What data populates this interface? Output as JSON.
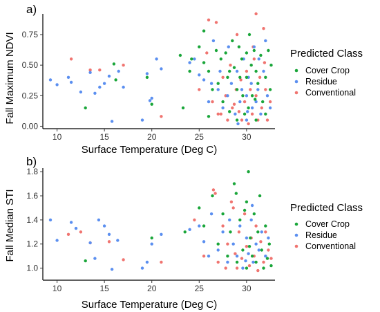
{
  "chart_data": [
    {
      "type": "scatter",
      "panel_label": "a)",
      "ylabel": "Fall Maximum NDVI",
      "xlabel": "Surface Temperature (Deg C)",
      "xlim": [
        8.5,
        33
      ],
      "ylim": [
        -0.02,
        0.92
      ],
      "x_ticks": [
        10,
        15,
        20,
        25,
        30
      ],
      "y_ticks": [
        0.0,
        0.25,
        0.5,
        0.75
      ],
      "y_tick_labels": [
        "0.00",
        "0.25",
        "0.50",
        "0.75"
      ],
      "grid": false,
      "legend_position": "right",
      "legend_title": "Predicted Class",
      "series": [
        {
          "name": "Cover Crop",
          "color": "#1aa63a",
          "points": [
            [
              13,
              0.15
            ],
            [
              16,
              0.51
            ],
            [
              16.2,
              0.38
            ],
            [
              19.5,
              0.4
            ],
            [
              20,
              0.18
            ],
            [
              23,
              0.58
            ],
            [
              23.3,
              0.15
            ],
            [
              24,
              0.45
            ],
            [
              24.2,
              0.55
            ],
            [
              25,
              0.65
            ],
            [
              25.5,
              0.52
            ],
            [
              25.5,
              0.78
            ],
            [
              26,
              0.45
            ],
            [
              26,
              0.08
            ],
            [
              26.4,
              0.3
            ],
            [
              26.8,
              0.62
            ],
            [
              27,
              0.35
            ],
            [
              27.3,
              0.55
            ],
            [
              27.5,
              0.2
            ],
            [
              27.8,
              0.6
            ],
            [
              28,
              0.4
            ],
            [
              28.2,
              0.45
            ],
            [
              28.5,
              0.7
            ],
            [
              28.7,
              0.48
            ],
            [
              29,
              0.05
            ],
            [
              29,
              0.3
            ],
            [
              29.2,
              0.65
            ],
            [
              29.5,
              0.55
            ],
            [
              29.6,
              0.25
            ],
            [
              29.8,
              0.1
            ],
            [
              30,
              0.6
            ],
            [
              30,
              0.4
            ],
            [
              30.2,
              0.15
            ],
            [
              30.3,
              0.75
            ],
            [
              30.5,
              0.5
            ],
            [
              30.6,
              0.25
            ],
            [
              30.8,
              0.62
            ],
            [
              31,
              0.45
            ],
            [
              31,
              0.05
            ],
            [
              31.2,
              0.35
            ],
            [
              31.5,
              0.58
            ],
            [
              31.7,
              0.2
            ],
            [
              32,
              0.4
            ],
            [
              32,
              0.1
            ],
            [
              32.3,
              0.62
            ],
            [
              32.5,
              0.3
            ],
            [
              32.6,
              0.5
            ],
            [
              28.2,
              0.12
            ],
            [
              29.3,
              0.4
            ],
            [
              30.9,
              0.22
            ]
          ]
        },
        {
          "name": "Residue",
          "color": "#5b8ff0",
          "points": [
            [
              9.3,
              0.38
            ],
            [
              10,
              0.34
            ],
            [
              11.2,
              0.4
            ],
            [
              11.5,
              0.36
            ],
            [
              12.5,
              0.28
            ],
            [
              13.5,
              0.44
            ],
            [
              14,
              0.27
            ],
            [
              14.5,
              0.32
            ],
            [
              15,
              0.35
            ],
            [
              15.5,
              0.41
            ],
            [
              15.8,
              0.04
            ],
            [
              16.5,
              0.45
            ],
            [
              17,
              0.32
            ],
            [
              19,
              0.05
            ],
            [
              19.5,
              0.43
            ],
            [
              19.8,
              0.21
            ],
            [
              20,
              0.23
            ],
            [
              20.5,
              0.55
            ],
            [
              21,
              0.47
            ],
            [
              24,
              0.52
            ],
            [
              24.5,
              0.55
            ],
            [
              25,
              0.42
            ],
            [
              25.5,
              0.38
            ],
            [
              26,
              0.2
            ],
            [
              26.3,
              0.35
            ],
            [
              26.5,
              0.7
            ],
            [
              27,
              0.3
            ],
            [
              27.2,
              0.45
            ],
            [
              27.5,
              0.15
            ],
            [
              28,
              0.25
            ],
            [
              28.1,
              0.65
            ],
            [
              28.4,
              0.35
            ],
            [
              28.8,
              0.1
            ],
            [
              29,
              0.45
            ],
            [
              29.3,
              0.2
            ],
            [
              29.5,
              0.3
            ],
            [
              29.7,
              0.55
            ],
            [
              30,
              0.25
            ],
            [
              30,
              0.05
            ],
            [
              30.2,
              0.4
            ],
            [
              30.5,
              0.35
            ],
            [
              30.6,
              0.15
            ],
            [
              30.8,
              0.65
            ],
            [
              31,
              0.2
            ],
            [
              31.2,
              0.3
            ],
            [
              31.5,
              0.1
            ],
            [
              31.8,
              0.45
            ],
            [
              32,
              0.7
            ],
            [
              32.2,
              0.25
            ],
            [
              32.5,
              0.15
            ],
            [
              30.1,
              0.12
            ],
            [
              29.1,
              0.02
            ],
            [
              31.3,
              0.55
            ]
          ]
        },
        {
          "name": "Conventional",
          "color": "#f07470",
          "points": [
            [
              11.5,
              0.55
            ],
            [
              13.5,
              0.46
            ],
            [
              14.5,
              0.46
            ],
            [
              17,
              0.5
            ],
            [
              21,
              0.08
            ],
            [
              25,
              0.3
            ],
            [
              25.8,
              0.6
            ],
            [
              26,
              0.87
            ],
            [
              26.4,
              0.2
            ],
            [
              26.8,
              0.85
            ],
            [
              27,
              0.1
            ],
            [
              27.5,
              0.4
            ],
            [
              27.8,
              0.25
            ],
            [
              28,
              0.05
            ],
            [
              28.3,
              0.5
            ],
            [
              28.5,
              0.15
            ],
            [
              28.9,
              0.3
            ],
            [
              29,
              0.75
            ],
            [
              29.2,
              0.12
            ],
            [
              29.5,
              0.05
            ],
            [
              29.8,
              0.2
            ],
            [
              30,
              0.45
            ],
            [
              30.2,
              0.02
            ],
            [
              30.4,
              0.3
            ],
            [
              30.6,
              0.1
            ],
            [
              30.8,
              0.55
            ],
            [
              31,
              0.25
            ],
            [
              31,
              0.92
            ],
            [
              31.2,
              0.05
            ],
            [
              31.4,
              0.4
            ],
            [
              31.6,
              0.15
            ],
            [
              31.8,
              0.8
            ],
            [
              32,
              0.3
            ],
            [
              32.2,
              0.05
            ],
            [
              32.5,
              0.2
            ],
            [
              28.7,
              0.18
            ],
            [
              29.4,
              0.38
            ],
            [
              30.7,
              0.65
            ],
            [
              27.3,
              0.1
            ],
            [
              31.9,
              0.52
            ]
          ]
        }
      ]
    },
    {
      "type": "scatter",
      "panel_label": "b)",
      "ylabel": "Fall Median STI",
      "xlabel": "Surface Temperature (Deg C)",
      "xlim": [
        8.5,
        33
      ],
      "ylim": [
        0.9,
        1.83
      ],
      "x_ticks": [
        10,
        15,
        20,
        25,
        30
      ],
      "y_ticks": [
        1.0,
        1.2,
        1.4,
        1.6,
        1.8
      ],
      "y_tick_labels": [
        "1.0",
        "1.2",
        "1.4",
        "1.6",
        "1.8"
      ],
      "grid": false,
      "legend_position": "right",
      "legend_title": "Predicted Class",
      "series": [
        {
          "name": "Cover Crop",
          "color": "#1aa63a",
          "points": [
            [
              13,
              1.06
            ],
            [
              20,
              1.25
            ],
            [
              23.5,
              1.3
            ],
            [
              25,
              1.5
            ],
            [
              25.5,
              1.35
            ],
            [
              26.4,
              1.6
            ],
            [
              27,
              1.2
            ],
            [
              27.5,
              1.45
            ],
            [
              28,
              1.1
            ],
            [
              28.3,
              1.3
            ],
            [
              28.7,
              1.7
            ],
            [
              29,
              1.05
            ],
            [
              29.3,
              1.4
            ],
            [
              29.6,
              1.15
            ],
            [
              30,
              1.55
            ],
            [
              30,
              1.0
            ],
            [
              30.2,
              1.8
            ],
            [
              30.4,
              1.25
            ],
            [
              30.6,
              1.1
            ],
            [
              30.8,
              1.45
            ],
            [
              31,
              1.05
            ],
            [
              31.2,
              1.3
            ],
            [
              31.4,
              1.6
            ],
            [
              31.6,
              1.15
            ],
            [
              31.8,
              1.0
            ],
            [
              32,
              1.35
            ],
            [
              32.2,
              1.08
            ],
            [
              32.4,
              1.2
            ],
            [
              32.6,
              1.02
            ],
            [
              29.8,
              1.48
            ],
            [
              28.9,
              1.62
            ],
            [
              30.3,
              1.18
            ]
          ]
        },
        {
          "name": "Residue",
          "color": "#5b8ff0",
          "points": [
            [
              9.3,
              1.4
            ],
            [
              10,
              1.23
            ],
            [
              11.5,
              1.38
            ],
            [
              12,
              1.33
            ],
            [
              13.5,
              1.21
            ],
            [
              14,
              1.08
            ],
            [
              14.4,
              1.4
            ],
            [
              15,
              1.35
            ],
            [
              15.5,
              1.28
            ],
            [
              15.8,
              0.99
            ],
            [
              16.4,
              1.23
            ],
            [
              19,
              1.0
            ],
            [
              19.5,
              1.05
            ],
            [
              20,
              1.2
            ],
            [
              21,
              1.28
            ],
            [
              24,
              1.32
            ],
            [
              25,
              1.35
            ],
            [
              25.5,
              1.22
            ],
            [
              26,
              1.1
            ],
            [
              26.3,
              1.45
            ],
            [
              27,
              1.15
            ],
            [
              27.5,
              1.3
            ],
            [
              28,
              1.05
            ],
            [
              28.2,
              1.4
            ],
            [
              28.6,
              1.2
            ],
            [
              29,
              1.1
            ],
            [
              29.3,
              1.35
            ],
            [
              29.6,
              1.0
            ],
            [
              30,
              1.25
            ],
            [
              30.2,
              1.12
            ],
            [
              30.5,
              1.4
            ],
            [
              30.7,
              1.05
            ],
            [
              31,
              1.2
            ],
            [
              31.3,
              1.15
            ],
            [
              31.6,
              1.3
            ],
            [
              32,
              1.1
            ],
            [
              32.3,
              1.25
            ],
            [
              29.9,
              1.06
            ],
            [
              30.6,
              1.52
            ]
          ]
        },
        {
          "name": "Conventional",
          "color": "#f07470",
          "points": [
            [
              11.2,
              1.28
            ],
            [
              12.5,
              1.3
            ],
            [
              13.5,
              1.21
            ],
            [
              15.5,
              1.22
            ],
            [
              17,
              1.07
            ],
            [
              21,
              1.05
            ],
            [
              24.5,
              1.4
            ],
            [
              25.5,
              1.1
            ],
            [
              26.5,
              1.65
            ],
            [
              27,
              1.05
            ],
            [
              27.5,
              1.35
            ],
            [
              27.8,
              1.0
            ],
            [
              28,
              1.2
            ],
            [
              28.4,
              1.55
            ],
            [
              28.8,
              1.12
            ],
            [
              29,
              1.0
            ],
            [
              29.2,
              1.3
            ],
            [
              29.5,
              1.08
            ],
            [
              29.8,
              1.45
            ],
            [
              30,
              1.18
            ],
            [
              30.3,
              1.02
            ],
            [
              30.5,
              1.25
            ],
            [
              30.8,
              1.1
            ],
            [
              31,
              1.35
            ],
            [
              31.2,
              0.98
            ],
            [
              31.5,
              1.22
            ],
            [
              31.8,
              1.05
            ],
            [
              32,
              1.3
            ],
            [
              32.3,
              1.15
            ],
            [
              32.6,
              1.08
            ],
            [
              26.7,
              1.62
            ],
            [
              28.6,
              1.5
            ]
          ]
        }
      ]
    }
  ]
}
